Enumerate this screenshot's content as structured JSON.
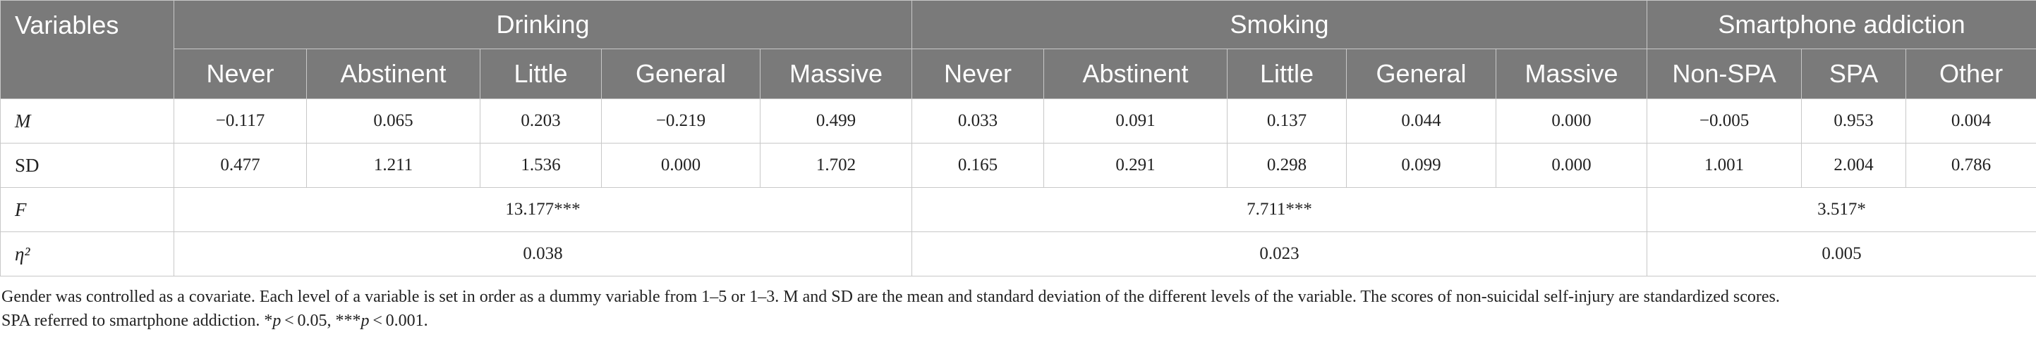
{
  "table": {
    "corner_label": "Variables",
    "groups": [
      {
        "label": "Drinking"
      },
      {
        "label": "Smoking"
      },
      {
        "label": "Smartphone addiction"
      }
    ],
    "subheaders": [
      "Never",
      "Abstinent",
      "Little",
      "General",
      "Massive",
      "Never",
      "Abstinent",
      "Little",
      "General",
      "Massive",
      "Non-SPA",
      "SPA",
      "Other"
    ],
    "rows": {
      "M": {
        "label": "M",
        "values": [
          "−0.117",
          "0.065",
          "0.203",
          "−0.219",
          "0.499",
          "0.033",
          "0.091",
          "0.137",
          "0.044",
          "0.000",
          "−0.005",
          "0.953",
          "0.004"
        ]
      },
      "SD": {
        "label": "SD",
        "values": [
          "0.477",
          "1.211",
          "1.536",
          "0.000",
          "1.702",
          "0.165",
          "0.291",
          "0.298",
          "0.099",
          "0.000",
          "1.001",
          "2.004",
          "0.786"
        ]
      },
      "F": {
        "label": "F",
        "values": [
          "13.177***",
          "7.711***",
          "3.517*"
        ]
      },
      "eta": {
        "label": "η²",
        "values": [
          "0.038",
          "0.023",
          "0.005"
        ]
      }
    }
  },
  "footnote": {
    "line1": "Gender was controlled as a covariate. Each level of a variable is set in order as a dummy variable from 1–5 or 1–3. M and SD are the mean and standard deviation of the different levels of the variable. The scores of non-suicidal self-injury are standardized scores.",
    "line2_a": "SPA referred to smartphone addiction. *",
    "p1": "p",
    "line2_b": " < 0.05, ***",
    "p2": "p",
    "line2_c": " < 0.001."
  }
}
